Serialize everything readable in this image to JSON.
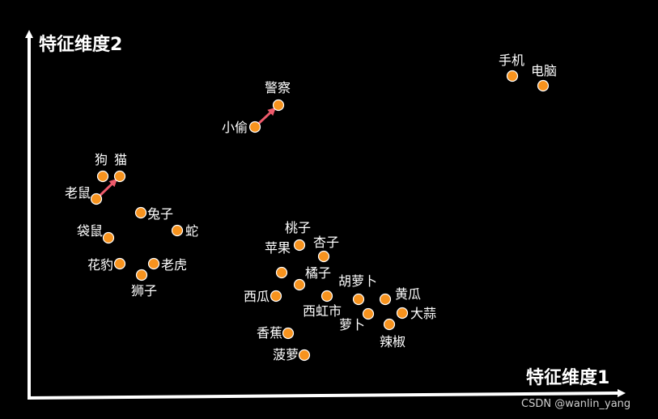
{
  "axes": {
    "y_title": "特征维度2",
    "x_title": "特征维度1"
  },
  "watermark": "CSDN @wanlin_yang",
  "colors": {
    "background": "#000000",
    "point": "#f7931e",
    "point_stroke": "#ffffff",
    "arrow": "#ee5a6b",
    "axis": "#ffffff",
    "text": "#ffffff"
  },
  "points": [
    {
      "id": "phone",
      "label": "手机"
    },
    {
      "id": "computer",
      "label": "电脑"
    },
    {
      "id": "police",
      "label": "警察"
    },
    {
      "id": "thief",
      "label": "小偷"
    },
    {
      "id": "dog",
      "label": "狗"
    },
    {
      "id": "cat",
      "label": "猫"
    },
    {
      "id": "mouse",
      "label": "老鼠"
    },
    {
      "id": "rabbit",
      "label": "兔子"
    },
    {
      "id": "snake",
      "label": "蛇"
    },
    {
      "id": "kangaroo",
      "label": "袋鼠"
    },
    {
      "id": "leopard",
      "label": "花豹"
    },
    {
      "id": "tiger",
      "label": "老虎"
    },
    {
      "id": "lion",
      "label": "狮子"
    },
    {
      "id": "peach",
      "label": "桃子"
    },
    {
      "id": "apricot",
      "label": "杏子"
    },
    {
      "id": "apple",
      "label": "苹果"
    },
    {
      "id": "orange",
      "label": "橘子"
    },
    {
      "id": "carrot",
      "label": "胡萝卜"
    },
    {
      "id": "cucumber",
      "label": "黄瓜"
    },
    {
      "id": "watermelon",
      "label": "西瓜"
    },
    {
      "id": "tomato",
      "label": "西虹市"
    },
    {
      "id": "garlic",
      "label": "大蒜"
    },
    {
      "id": "radish",
      "label": "萝卜"
    },
    {
      "id": "banana",
      "label": "香蕉"
    },
    {
      "id": "pepper",
      "label": "辣椒"
    },
    {
      "id": "pineapple",
      "label": "菠萝"
    }
  ],
  "arrows": [
    {
      "from": "mouse",
      "to": "cat"
    },
    {
      "from": "thief",
      "to": "police"
    }
  ]
}
